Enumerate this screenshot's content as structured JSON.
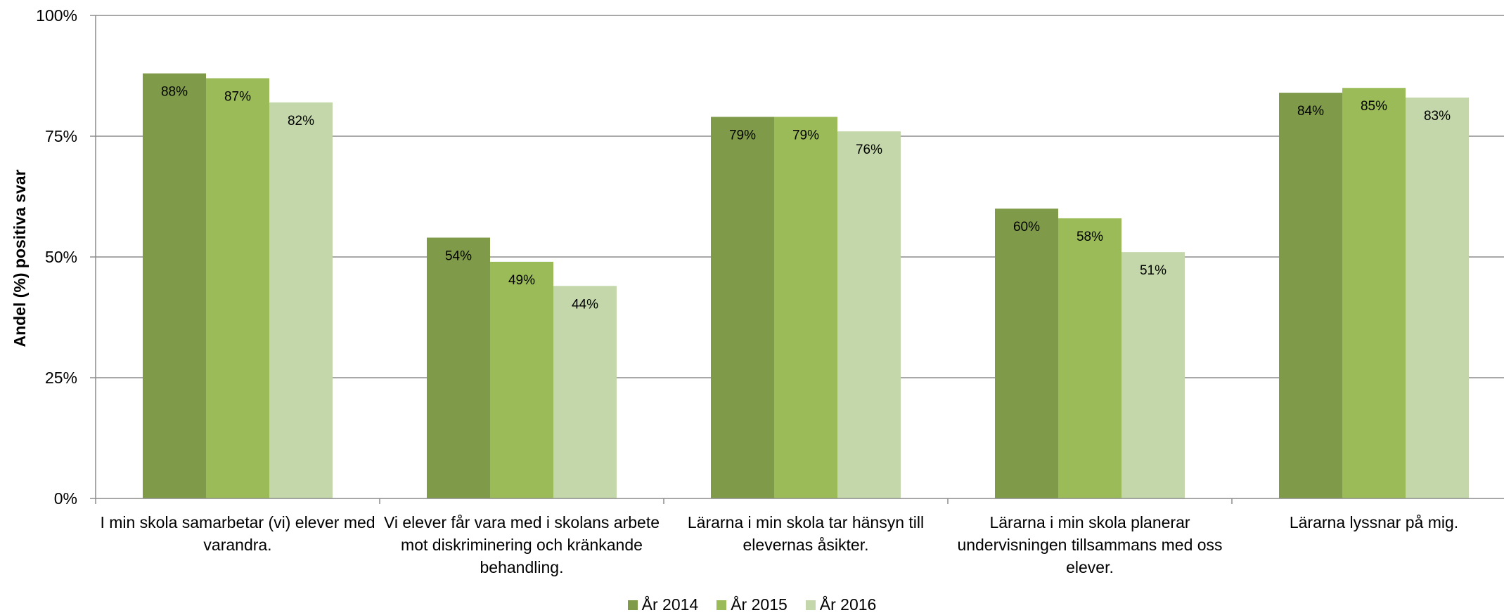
{
  "chart_data": {
    "type": "bar",
    "ylabel": "Andel (%) positiva svar",
    "ylim": [
      0,
      100
    ],
    "yticks": [
      "0%",
      "25%",
      "50%",
      "75%",
      "100%"
    ],
    "grid": true,
    "legend_position": "bottom",
    "categories": [
      "I min skola samarbetar (vi) elever med varandra.",
      "Vi elever får vara med i skolans arbete mot diskriminering och kränkande behandling.",
      "Lärarna i min skola tar hänsyn till elevernas åsikter.",
      "Lärarna i min skola planerar undervisningen tillsammans med oss elever.",
      "Lärarna lyssnar på mig."
    ],
    "series": [
      {
        "name": "År 2014",
        "color": "#7f9a48",
        "values": [
          88,
          54,
          79,
          60,
          84
        ],
        "labels": [
          "88%",
          "54%",
          "79%",
          "60%",
          "84%"
        ]
      },
      {
        "name": "År 2015",
        "color": "#9bbb59",
        "values": [
          87,
          49,
          79,
          58,
          85
        ],
        "labels": [
          "87%",
          "49%",
          "79%",
          "58%",
          "85%"
        ]
      },
      {
        "name": "År 2016",
        "color": "#c4d7aa",
        "values": [
          82,
          44,
          76,
          51,
          83
        ],
        "labels": [
          "82%",
          "44%",
          "76%",
          "51%",
          "83%"
        ]
      }
    ]
  }
}
